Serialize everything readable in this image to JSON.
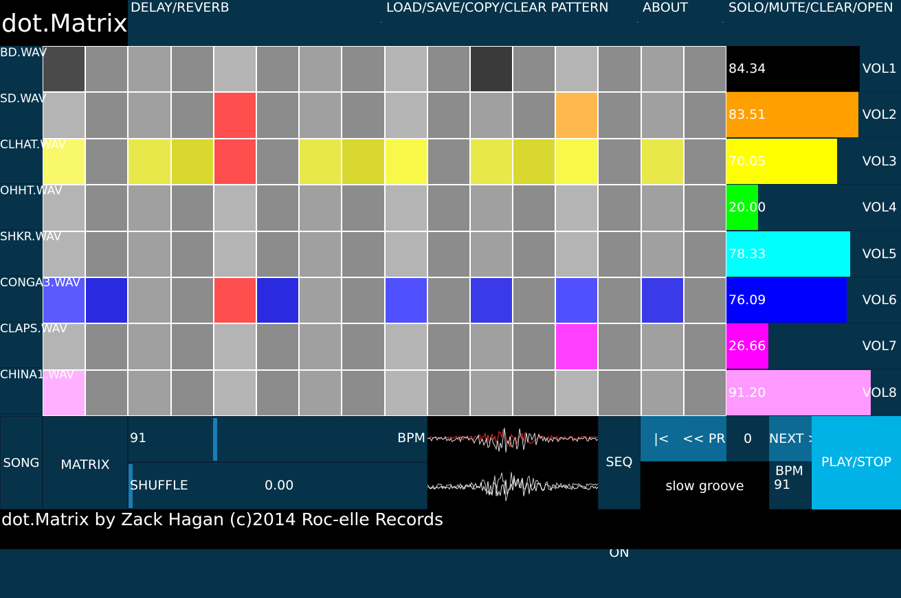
{
  "app": {
    "title": "dot.Matrix"
  },
  "menu": {
    "delay_reverb": "DELAY/REVERB",
    "pattern": "LOAD/SAVE/COPY/CLEAR PATTERN",
    "about": "ABOUT",
    "solo": "SOLO/MUTE/CLEAR/OPEN"
  },
  "tracks": [
    {
      "name": "BD.WAV",
      "volume": "84.34",
      "vol_label": "VOL1",
      "vol_level": 0.8434,
      "vol_color": "#000000"
    },
    {
      "name": "SD.WAV",
      "volume": "83.51",
      "vol_label": "VOL2",
      "vol_level": 0.8351,
      "vol_color": "#ff9f00"
    },
    {
      "name": "CLHAT.WAV",
      "volume": "70.05",
      "vol_label": "VOL3",
      "vol_level": 0.7005,
      "vol_color": "#ffff00"
    },
    {
      "name": "OHHT.WAV",
      "volume": "20.00",
      "vol_label": "VOL4",
      "vol_level": 0.2,
      "vol_color": "#00ff00"
    },
    {
      "name": "SHKR.WAV",
      "volume": "78.33",
      "vol_label": "VOL5",
      "vol_level": 0.7833,
      "vol_color": "#00ffff"
    },
    {
      "name": "CONGA3.WAV",
      "volume": "76.09",
      "vol_label": "VOL6",
      "vol_level": 0.7609,
      "vol_color": "#0000ff"
    },
    {
      "name": "CLAPS.WAV",
      "volume": "26.66",
      "vol_label": "VOL7",
      "vol_level": 0.2666,
      "vol_color": "#ff00ff"
    },
    {
      "name": "CHINA1.WAV",
      "volume": "91.20",
      "vol_label": "VOL8",
      "vol_level": 0.912,
      "vol_color": "#ff99ff"
    }
  ],
  "grid_colors": [
    [
      "#4a4a4a",
      "#8c8c8c",
      "#a0a0a0",
      "#8c8c8c",
      "#b4b4b4",
      "#8c8c8c",
      "#a0a0a0",
      "#8c8c8c",
      "#b4b4b4",
      "#8c8c8c",
      "#3a3a3a",
      "#8c8c8c",
      "#b4b4b4",
      "#8c8c8c",
      "#a0a0a0",
      "#8c8c8c"
    ],
    [
      "#b4b4b4",
      "#8c8c8c",
      "#a0a0a0",
      "#8c8c8c",
      "#ff4e4e",
      "#8c8c8c",
      "#a0a0a0",
      "#8c8c8c",
      "#b4b4b4",
      "#8c8c8c",
      "#a0a0a0",
      "#8c8c8c",
      "#ffb84d",
      "#8c8c8c",
      "#a0a0a0",
      "#8c8c8c"
    ],
    [
      "#f8f86a",
      "#8c8c8c",
      "#e8e84a",
      "#d8d830",
      "#ff4e4e",
      "#8c8c8c",
      "#e8e84a",
      "#d8d830",
      "#f8f84a",
      "#8c8c8c",
      "#e8e84a",
      "#d8d830",
      "#f8f84a",
      "#8c8c8c",
      "#e8e84a",
      "#8c8c8c"
    ],
    [
      "#b4b4b4",
      "#8c8c8c",
      "#a0a0a0",
      "#8c8c8c",
      "#b4b4b4",
      "#8c8c8c",
      "#a0a0a0",
      "#8c8c8c",
      "#b4b4b4",
      "#8c8c8c",
      "#a0a0a0",
      "#8c8c8c",
      "#b4b4b4",
      "#8c8c8c",
      "#a0a0a0",
      "#8c8c8c"
    ],
    [
      "#b4b4b4",
      "#8c8c8c",
      "#a0a0a0",
      "#8c8c8c",
      "#b4b4b4",
      "#8c8c8c",
      "#a0a0a0",
      "#8c8c8c",
      "#b4b4b4",
      "#8c8c8c",
      "#a0a0a0",
      "#8c8c8c",
      "#b4b4b4",
      "#8c8c8c",
      "#a0a0a0",
      "#8c8c8c"
    ],
    [
      "#5a5aff",
      "#2a2ae0",
      "#a0a0a0",
      "#8c8c8c",
      "#ff4e4e",
      "#2a2ae0",
      "#a0a0a0",
      "#8c8c8c",
      "#5050ff",
      "#8c8c8c",
      "#3a3ae8",
      "#8c8c8c",
      "#5050ff",
      "#8c8c8c",
      "#3a3ae8",
      "#8c8c8c"
    ],
    [
      "#b4b4b4",
      "#8c8c8c",
      "#a0a0a0",
      "#8c8c8c",
      "#b4b4b4",
      "#8c8c8c",
      "#a0a0a0",
      "#8c8c8c",
      "#b4b4b4",
      "#8c8c8c",
      "#a0a0a0",
      "#8c8c8c",
      "#ff40ff",
      "#8c8c8c",
      "#a0a0a0",
      "#8c8c8c"
    ],
    [
      "#ffb0ff",
      "#8c8c8c",
      "#a0a0a0",
      "#8c8c8c",
      "#b4b4b4",
      "#8c8c8c",
      "#a0a0a0",
      "#8c8c8c",
      "#b4b4b4",
      "#8c8c8c",
      "#a0a0a0",
      "#8c8c8c",
      "#b4b4b4",
      "#8c8c8c",
      "#a0a0a0",
      "#8c8c8c"
    ]
  ],
  "controls": {
    "song": "SONG",
    "matrix": "MATRIX",
    "bpm_value": "91",
    "bpm_label": "BPM",
    "shuffle_label": "SHUFFLE",
    "shuffle_value": "0.00",
    "seq_on": "SEQ ON",
    "first": "|<",
    "prev": "<< PREV",
    "pattern_index": "0",
    "next": "NEXT >>",
    "pattern_name": "slow groove",
    "bpm_small_label": "BPM",
    "bpm_small_value": "91",
    "play_stop": "PLAY/STOP"
  },
  "footer": {
    "credit": "dot.Matrix by Zack Hagan (c)2014 Roc-elle Records"
  },
  "colors": {
    "background": "#06334a",
    "play_button": "#00b2e6",
    "nav_button": "#0c6a94",
    "bpm_slider": "#1a7db4"
  }
}
